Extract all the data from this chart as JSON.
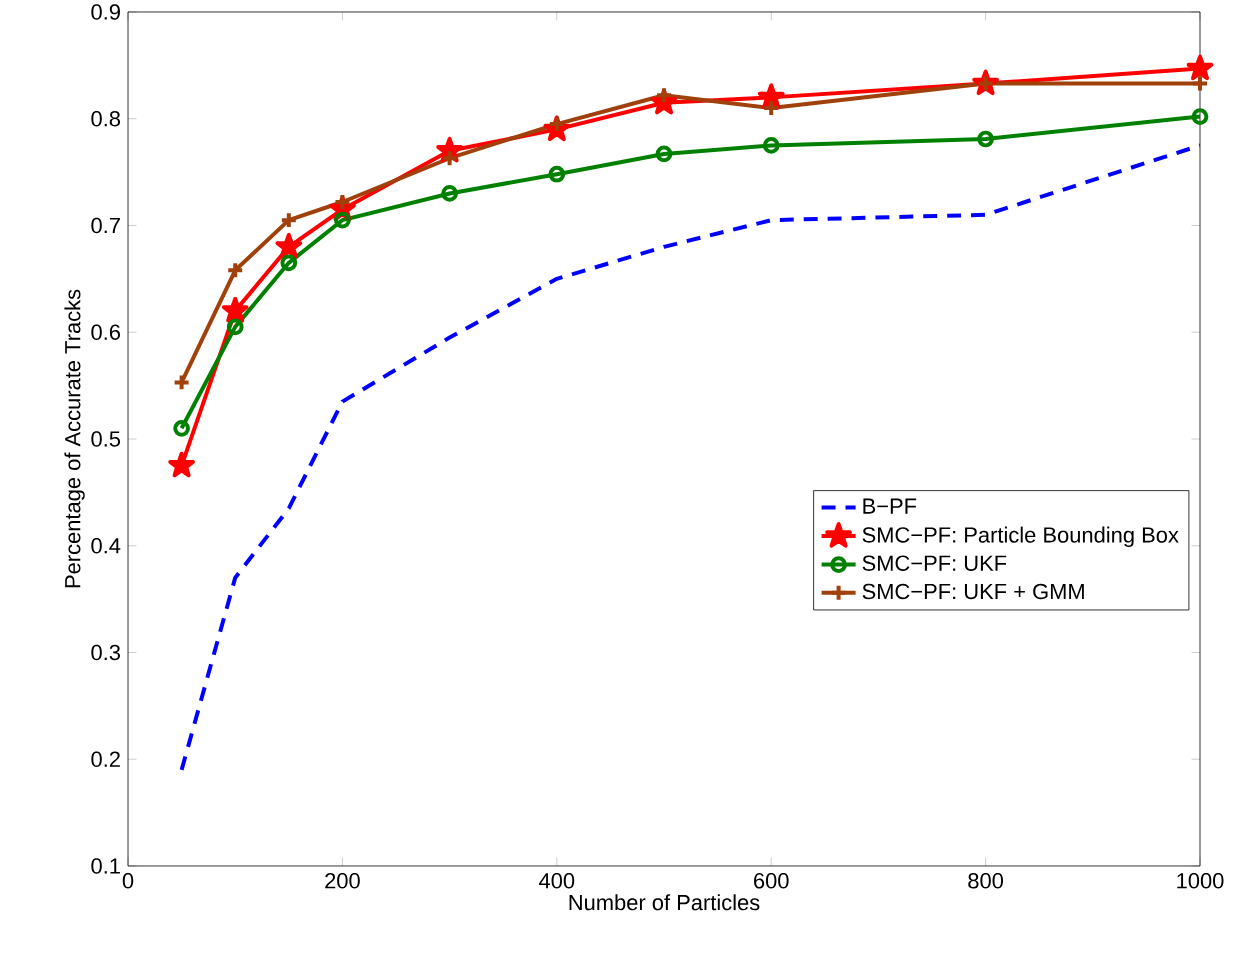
{
  "chart_data": {
    "type": "line",
    "xlabel": "Number of Particles",
    "ylabel": "Percentage of Accurate Tracks",
    "x": [
      50,
      100,
      150,
      200,
      300,
      400,
      500,
      600,
      800,
      1000
    ],
    "xlim": [
      0,
      1000
    ],
    "xticks": [
      0,
      200,
      400,
      600,
      800,
      1000
    ],
    "ylim": [
      0.1,
      0.9
    ],
    "yticks": [
      0.1,
      0.2,
      0.3,
      0.4,
      0.5,
      0.6,
      0.7,
      0.8,
      0.9
    ],
    "grid": false,
    "legend": "right",
    "series": [
      {
        "name": "B−PF",
        "color": "#0000ff",
        "line_style": "dashed",
        "marker": "none",
        "values": [
          0.19,
          0.37,
          0.435,
          0.535,
          0.595,
          0.65,
          0.68,
          0.705,
          0.71,
          0.775
        ]
      },
      {
        "name": "SMC−PF: Particle Bounding Box",
        "color": "#ff0000",
        "line_style": "solid",
        "marker": "star",
        "values": [
          0.475,
          0.62,
          0.68,
          0.715,
          0.77,
          0.79,
          0.815,
          0.82,
          0.833,
          0.847
        ]
      },
      {
        "name": "SMC−PF: UKF",
        "color": "#008000",
        "line_style": "solid",
        "marker": "circle",
        "values": [
          0.51,
          0.605,
          0.665,
          0.705,
          0.73,
          0.748,
          0.767,
          0.775,
          0.781,
          0.802
        ]
      },
      {
        "name": "SMC−PF: UKF + GMM",
        "color": "#a0400a",
        "line_style": "solid",
        "marker": "cross",
        "values": [
          0.553,
          0.658,
          0.705,
          0.722,
          0.763,
          0.795,
          0.822,
          0.81,
          0.833,
          0.833
        ]
      }
    ]
  }
}
